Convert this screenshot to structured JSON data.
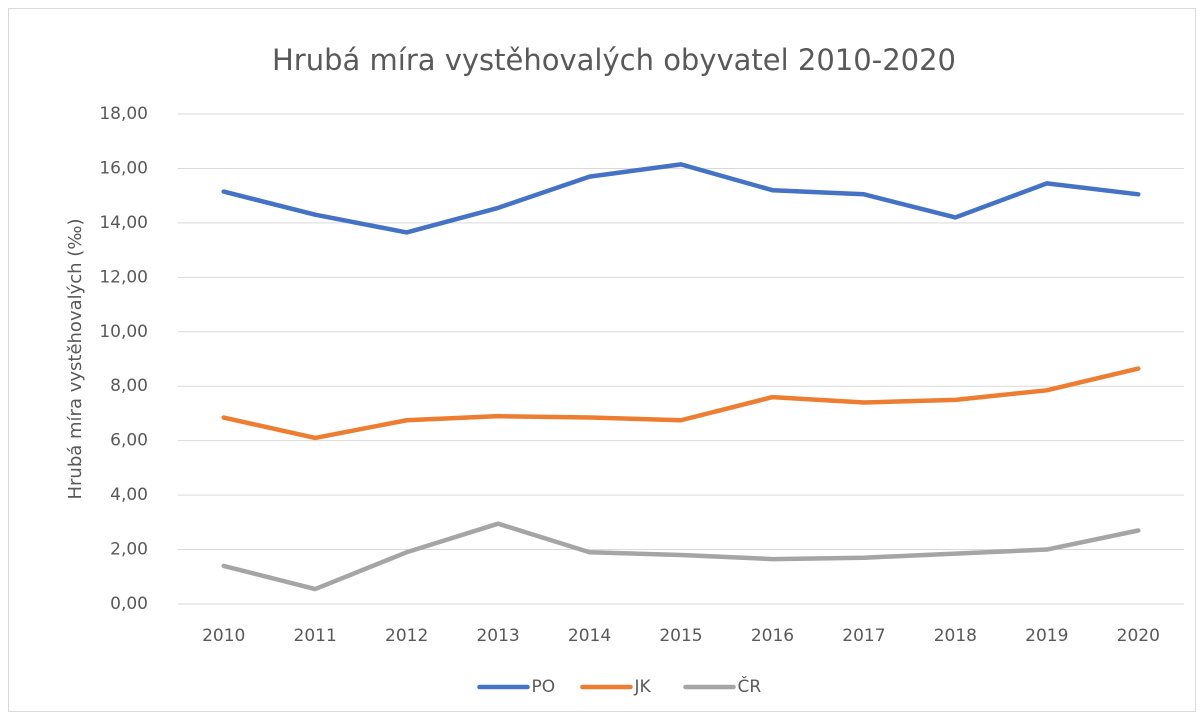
{
  "chart_data": {
    "type": "line",
    "title": "Hrubá míra vystěhovalých obyvatel 2010-2020",
    "y_label": "Hrubá míra vystěhovalých (‰)",
    "categories": [
      "2010",
      "2011",
      "2012",
      "2013",
      "2014",
      "2015",
      "2016",
      "2017",
      "2018",
      "2019",
      "2020"
    ],
    "series": [
      {
        "name": "PO",
        "color": "#4472c4",
        "values": [
          15.15,
          14.3,
          13.65,
          14.55,
          15.7,
          16.15,
          15.2,
          15.05,
          14.2,
          15.45,
          15.05
        ]
      },
      {
        "name": "JK",
        "color": "#ed7d31",
        "values": [
          6.85,
          6.1,
          6.75,
          6.9,
          6.85,
          6.75,
          7.6,
          7.4,
          7.5,
          7.85,
          8.65
        ]
      },
      {
        "name": "ČR",
        "color": "#a5a5a5",
        "values": [
          1.4,
          0.55,
          1.9,
          2.95,
          1.9,
          1.8,
          1.65,
          1.7,
          1.85,
          2.0,
          2.7
        ]
      }
    ],
    "ylim": [
      0,
      18
    ],
    "yticks": [
      {
        "value": 0,
        "label": "0,00"
      },
      {
        "value": 2,
        "label": "2,00"
      },
      {
        "value": 4,
        "label": "4,00"
      },
      {
        "value": 6,
        "label": "6,00"
      },
      {
        "value": 8,
        "label": "8,00"
      },
      {
        "value": 10,
        "label": "10,00"
      },
      {
        "value": 12,
        "label": "12,00"
      },
      {
        "value": 14,
        "label": "14,00"
      },
      {
        "value": 16,
        "label": "16,00"
      },
      {
        "value": 18,
        "label": "18,00"
      }
    ],
    "grid": true,
    "legend": "bottom"
  }
}
